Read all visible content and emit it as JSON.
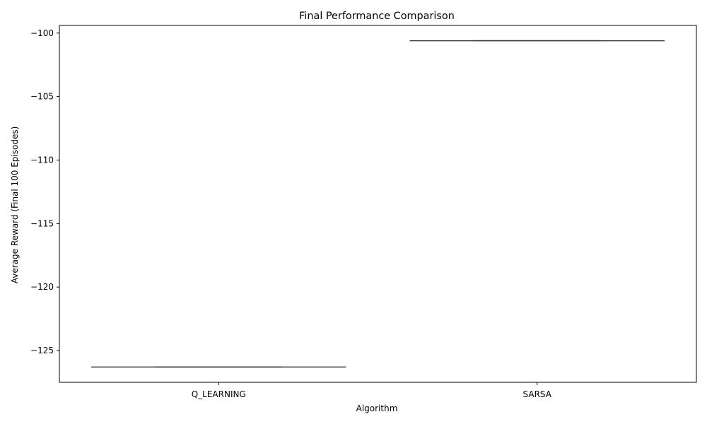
{
  "chart_data": {
    "type": "box",
    "title": "Final Performance Comparison",
    "xlabel": "Algorithm",
    "ylabel": "Average Reward (Final 100 Episodes)",
    "categories": [
      "Q_LEARNING",
      "SARSA"
    ],
    "values": [
      -126.3,
      -100.6
    ],
    "ylim": [
      -127.5,
      -99.4
    ],
    "yticks": [
      -125,
      -120,
      -115,
      -110,
      -105,
      -100
    ],
    "ytick_labels": [
      "−125",
      "−120",
      "−115",
      "−110",
      "−105",
      "−100"
    ],
    "grid": false,
    "colors": {
      "line": "#3f3f3f",
      "axis": "#000000"
    }
  }
}
